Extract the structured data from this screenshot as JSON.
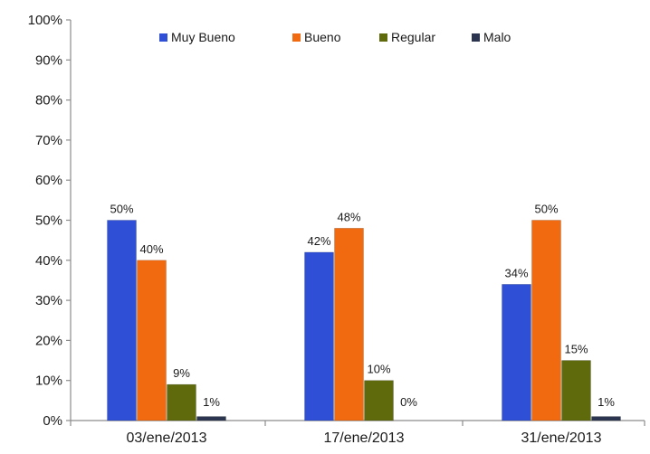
{
  "chart_data": {
    "type": "bar",
    "categories": [
      "03/ene/2013",
      "17/ene/2013",
      "31/ene/2013"
    ],
    "series": [
      {
        "name": "Muy Bueno",
        "color": "#2e4fd6",
        "values": [
          50,
          42,
          34
        ],
        "labels": [
          "50%",
          "42%",
          "34%"
        ]
      },
      {
        "name": "Bueno",
        "color": "#f26a0f",
        "values": [
          40,
          48,
          50
        ],
        "labels": [
          "40%",
          "48%",
          "50%"
        ]
      },
      {
        "name": "Regular",
        "color": "#5e6a0c",
        "values": [
          9,
          10,
          15
        ],
        "labels": [
          "9%",
          "10%",
          "15%"
        ]
      },
      {
        "name": "Malo",
        "color": "#2b3550",
        "values": [
          1,
          0,
          1
        ],
        "labels": [
          "1%",
          "0%",
          "1%"
        ]
      }
    ],
    "y_ticks": [
      "0%",
      "10%",
      "20%",
      "30%",
      "40%",
      "50%",
      "60%",
      "70%",
      "80%",
      "90%",
      "100%"
    ],
    "ylim": [
      0,
      100
    ],
    "title": "",
    "xlabel": "",
    "ylabel": "",
    "legend_position": "top",
    "grid": false
  }
}
